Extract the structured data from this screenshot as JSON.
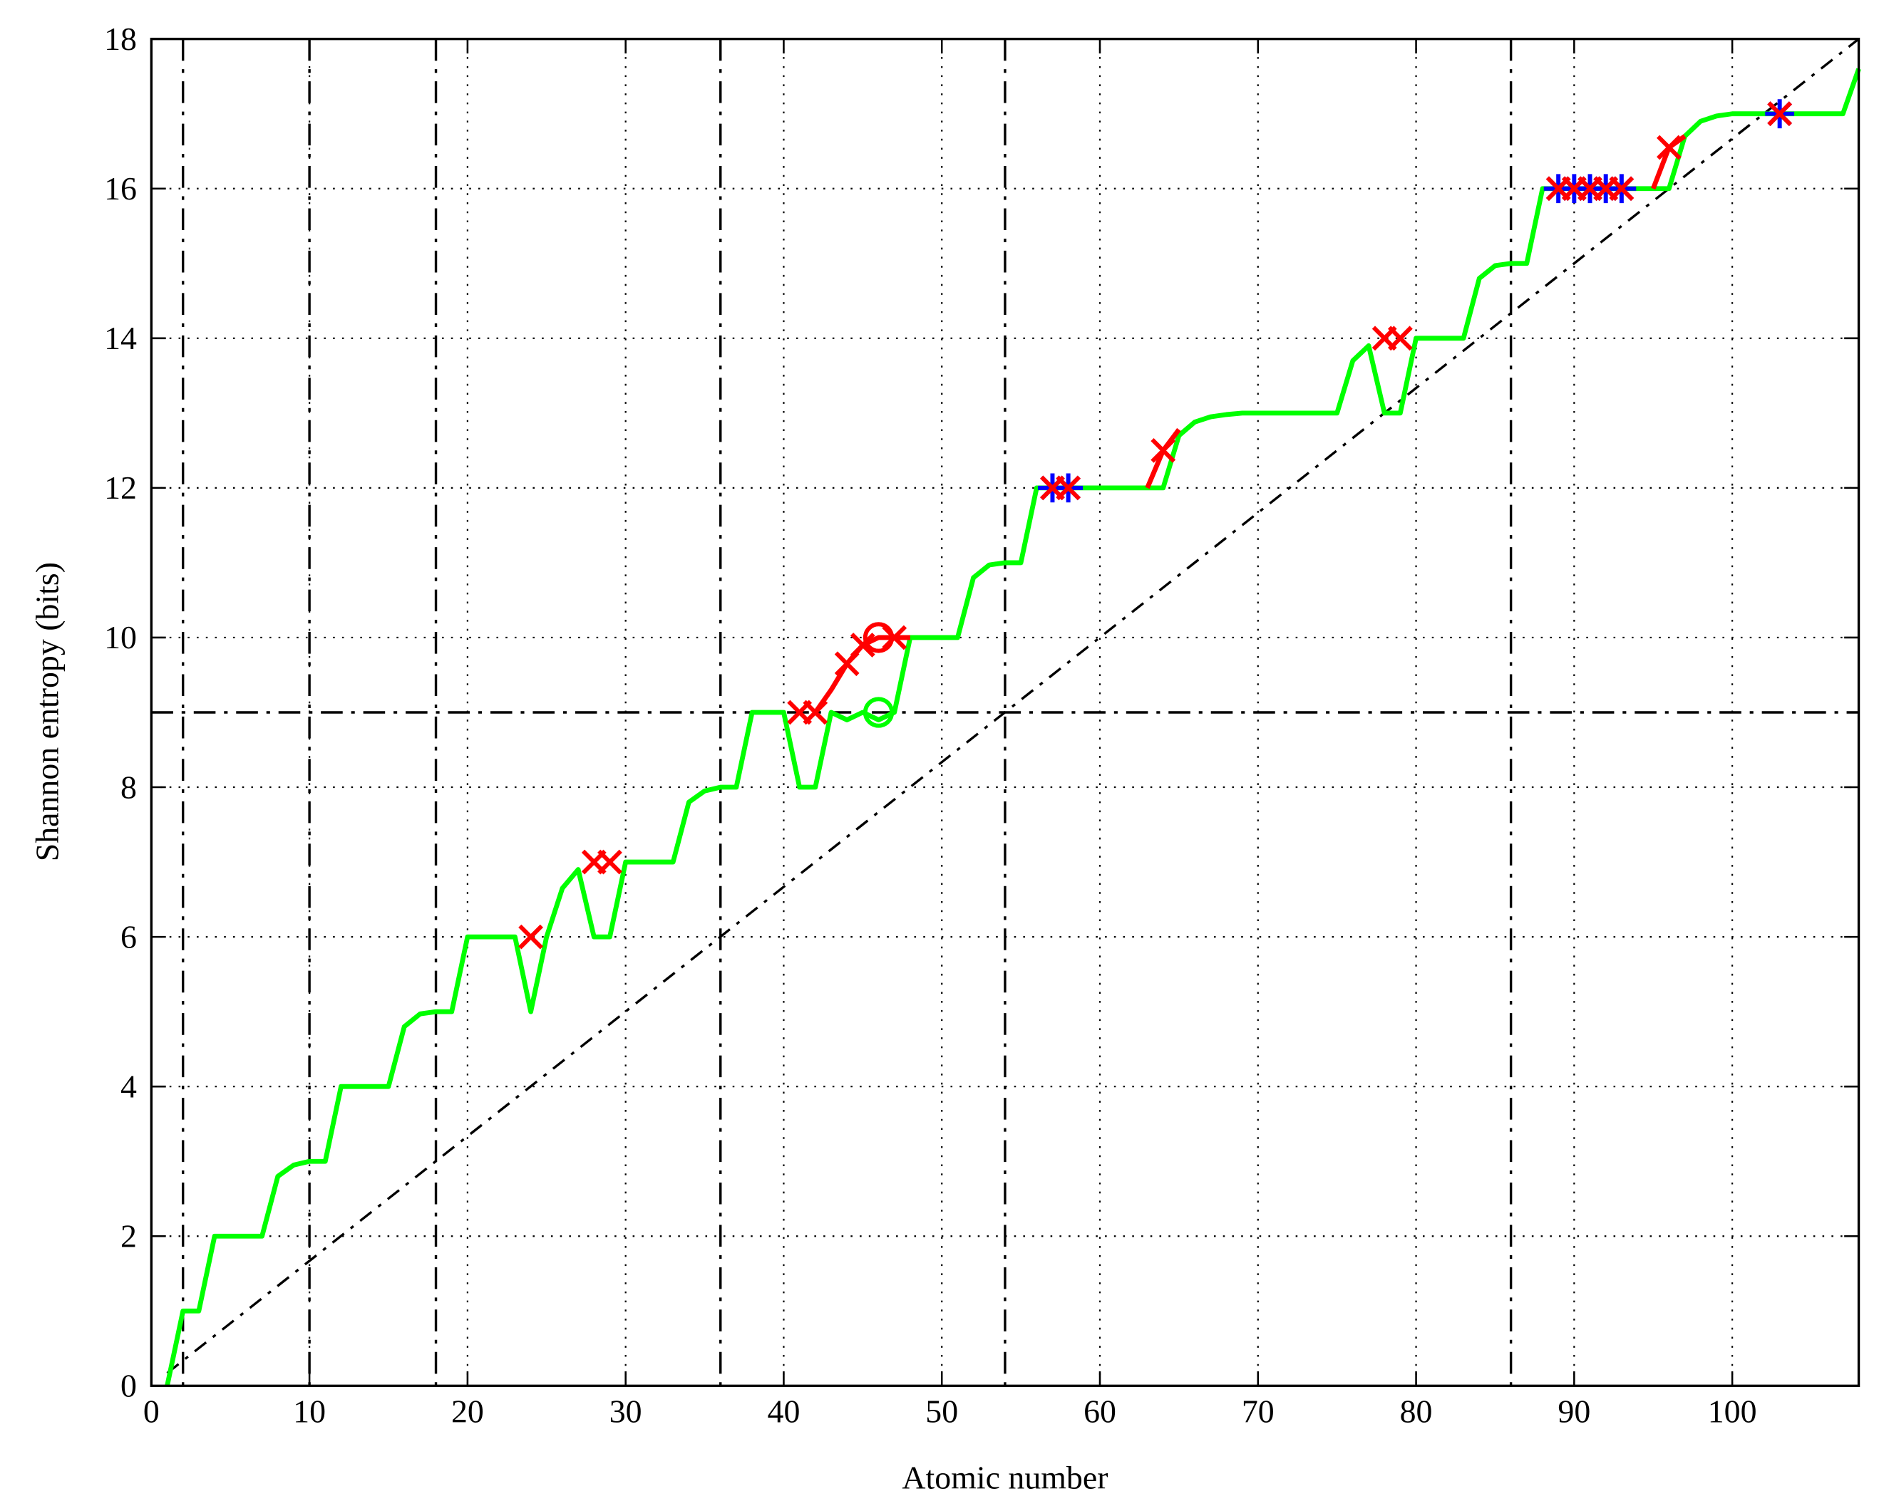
{
  "chart_data": {
    "type": "line",
    "xlabel": "Atomic number",
    "ylabel": "Shannon entropy (bits)",
    "xlim": [
      0,
      108
    ],
    "ylim": [
      0,
      18
    ],
    "xticks": [
      0,
      10,
      20,
      30,
      40,
      50,
      60,
      70,
      80,
      90,
      100
    ],
    "yticks": [
      0,
      2,
      4,
      6,
      8,
      10,
      12,
      14,
      16,
      18
    ],
    "grid": true,
    "series": [
      {
        "color": "#00ff00",
        "x": [
          1,
          2,
          3,
          4,
          5,
          6,
          7,
          8,
          9,
          10,
          11,
          12,
          13,
          14,
          15,
          16,
          17,
          18,
          19,
          20,
          21,
          22,
          23,
          24,
          25,
          26,
          27,
          28,
          29,
          30,
          31,
          32,
          33,
          34,
          35,
          36,
          37,
          38,
          39,
          40,
          41,
          42,
          43,
          44,
          45,
          46,
          47,
          48,
          49,
          50,
          51,
          52,
          53,
          54,
          55,
          56,
          57,
          58,
          59,
          60,
          61,
          62,
          63,
          64,
          65,
          66,
          67,
          68,
          69,
          70,
          71,
          72,
          73,
          74,
          75,
          76,
          77,
          78,
          79,
          80,
          81,
          82,
          83,
          84,
          85,
          86,
          87,
          88,
          89,
          90,
          91,
          92,
          93,
          94,
          95,
          96,
          97,
          98,
          99,
          100,
          101,
          102,
          103,
          104,
          105,
          106,
          107,
          108
        ],
        "values": [
          0,
          1,
          1,
          2,
          2,
          2,
          2,
          2.8,
          2.95,
          3,
          3,
          4,
          4,
          4,
          4,
          4.8,
          4.97,
          5,
          5,
          6,
          6,
          6,
          6,
          5,
          6,
          6.65,
          6.9,
          6,
          6,
          7,
          7,
          7,
          7,
          7.8,
          7.95,
          8,
          8,
          9,
          9,
          9,
          8,
          8,
          9,
          8.9,
          9,
          8.9,
          9,
          10,
          10,
          10,
          10,
          10.8,
          10.97,
          11,
          11,
          12,
          12,
          12,
          12,
          12,
          12,
          12,
          12,
          12,
          12.7,
          12.88,
          12.95,
          12.98,
          13,
          13,
          13,
          13,
          13,
          13,
          13,
          13.7,
          13.9,
          13,
          13,
          14,
          14,
          14,
          14,
          14.8,
          14.97,
          15,
          15,
          16,
          16,
          16,
          16,
          16,
          16,
          16,
          16,
          16,
          16.7,
          16.9,
          16.97,
          17,
          17,
          17,
          17,
          17,
          17,
          17,
          17,
          17.6
        ]
      },
      {
        "color": "#ff0000",
        "x": [
          42,
          43,
          44,
          45,
          46,
          47,
          48,
          null,
          63,
          64,
          65,
          null,
          95,
          96,
          97
        ],
        "values": [
          9,
          9.3,
          9.65,
          9.9,
          10,
          10,
          10,
          null,
          12,
          12.5,
          12.78,
          null,
          16,
          16.55,
          16.7
        ]
      }
    ],
    "markers": [
      {
        "marker": "*",
        "color": "#0000ff",
        "x": [
          57,
          58,
          89,
          90,
          91,
          92,
          93,
          103
        ],
        "values": [
          12,
          12,
          16,
          16,
          16,
          16,
          16,
          17
        ]
      },
      {
        "marker": "x",
        "color": "#ff0000",
        "x": [
          24,
          28,
          29,
          41,
          42,
          44,
          45,
          47,
          57,
          58,
          64,
          78,
          79,
          89,
          90,
          91,
          92,
          93,
          96,
          103
        ],
        "values": [
          6,
          7,
          7,
          9,
          9,
          9.65,
          9.9,
          10,
          12,
          12,
          12.5,
          14,
          14,
          16,
          16,
          16,
          16,
          16,
          16.55,
          17
        ]
      },
      {
        "marker": "o",
        "color": "#ff0000",
        "x": [
          46
        ],
        "values": [
          10
        ]
      },
      {
        "marker": "o",
        "color": "#00ff00",
        "x": [
          46
        ],
        "values": [
          9
        ]
      }
    ],
    "vlines": [
      2,
      10,
      18,
      36,
      54,
      86
    ],
    "hlines": [
      9
    ],
    "diagonal": {
      "x": [
        1,
        108
      ],
      "values": [
        0.17,
        18
      ]
    }
  }
}
